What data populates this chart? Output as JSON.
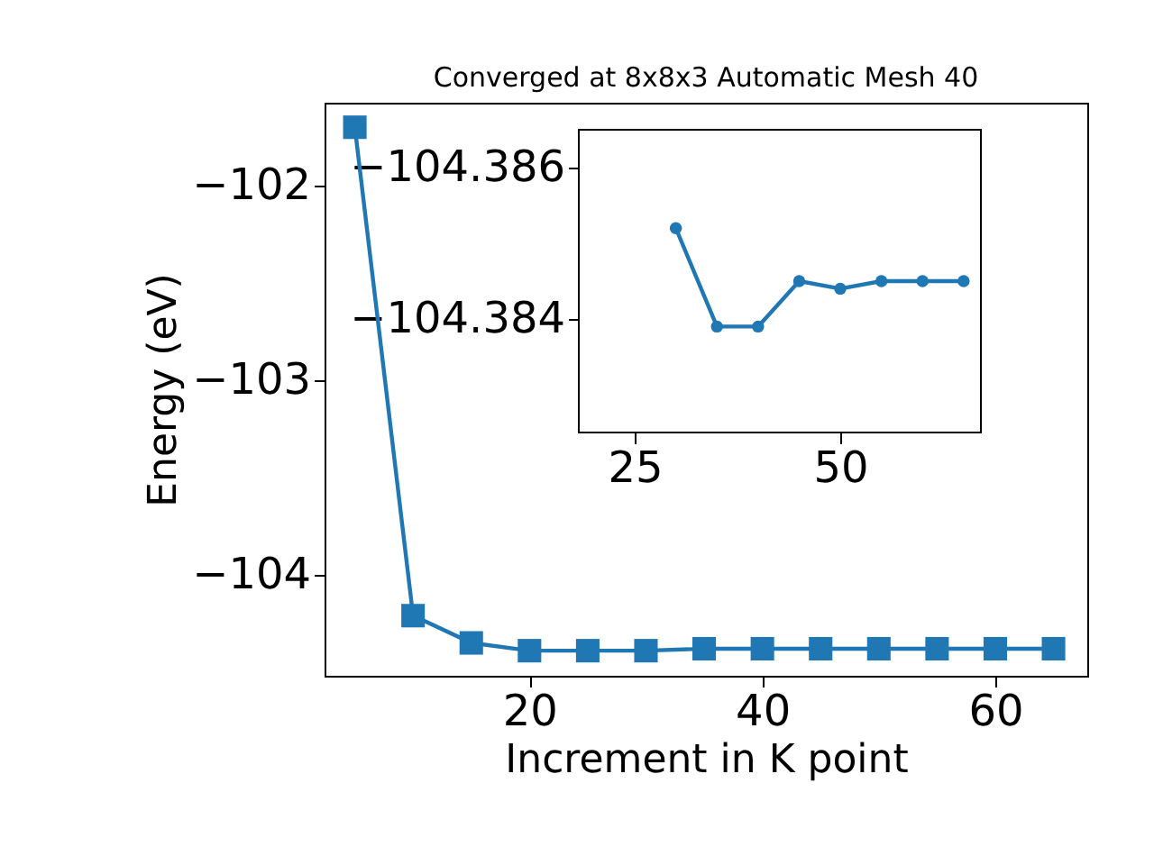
{
  "chart_data": [
    {
      "type": "line",
      "title": "Converged at 8x8x3 Automatic Mesh 40",
      "xlabel": "Increment in K point",
      "ylabel": "Energy (eV)",
      "x": [
        5,
        10,
        15,
        20,
        25,
        30,
        35,
        40,
        45,
        50,
        55,
        60,
        65
      ],
      "series": [
        {
          "color": "#1f77b4",
          "values": [
            -101.7,
            -104.21,
            -104.35,
            -104.39,
            -104.39,
            -104.39,
            -104.38,
            -104.38,
            -104.38,
            -104.38,
            -104.38,
            -104.38,
            -104.38
          ]
        }
      ],
      "marker": "square",
      "grid": false,
      "xlim": [
        2.4,
        67.9
      ],
      "ylim": [
        -104.519,
        -101.574
      ],
      "xticks": [
        20,
        40,
        60
      ],
      "yticks": [
        {
          "value": -104,
          "label": "−104"
        },
        {
          "value": -103,
          "label": "−103"
        },
        {
          "value": -102,
          "label": "−102"
        }
      ]
    },
    {
      "type": "line",
      "x": [
        30,
        35,
        40,
        45,
        50,
        55,
        60,
        65
      ],
      "series": [
        {
          "color": "#1f77b4",
          "values": [
            -104.3852,
            -104.3839,
            -104.3839,
            -104.3845,
            -104.3844,
            -104.3845,
            -104.3845,
            -104.3845
          ]
        }
      ],
      "marker": "circle",
      "grid": false,
      "xlim": [
        18.2,
        67.1
      ],
      "ylim": [
        -104.3825,
        -104.3865
      ],
      "xticks": [
        25,
        50
      ],
      "yticks": [
        {
          "value": -104.386,
          "label": "−104.386"
        },
        {
          "value": -104.384,
          "label": "−104.384"
        }
      ]
    }
  ]
}
